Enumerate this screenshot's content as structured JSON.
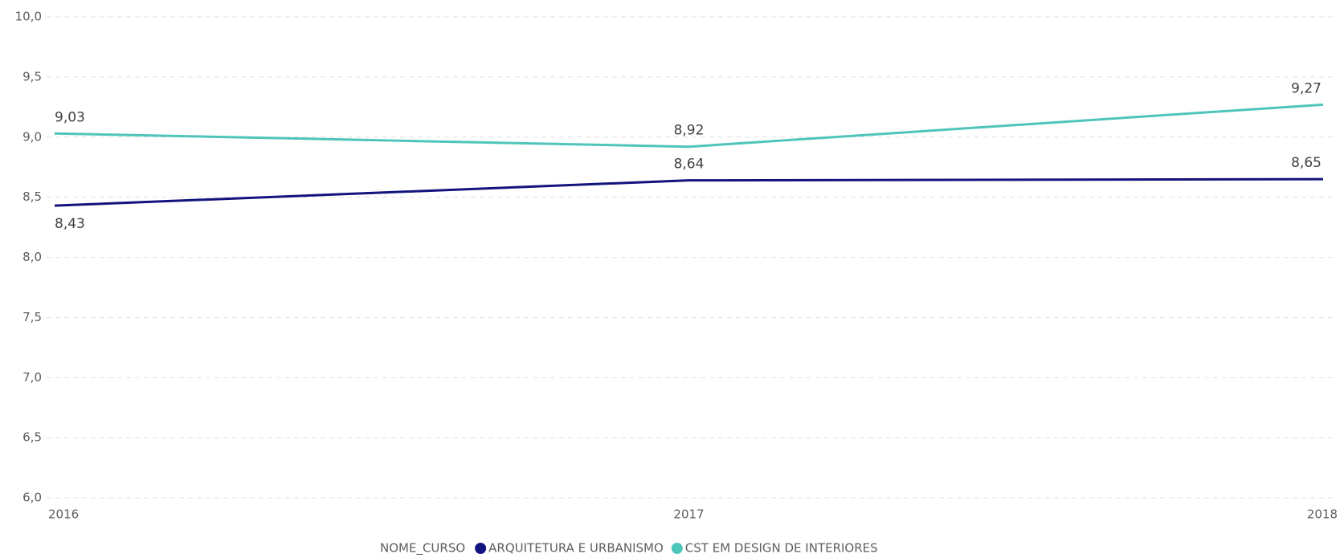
{
  "chart_data": {
    "type": "line",
    "categories": [
      "2016",
      "2017",
      "2018"
    ],
    "series": [
      {
        "name": "ARQUITETURA E URBANISMO",
        "color": "#13137f",
        "values": [
          8.43,
          8.64,
          8.65
        ],
        "value_labels": [
          "8,43",
          "8,64",
          "8,65"
        ]
      },
      {
        "name": "CST EM DESIGN DE INTERIORES",
        "color": "#4ec5bb",
        "values": [
          9.03,
          8.92,
          9.27
        ],
        "value_labels": [
          "9,03",
          "8,92",
          "9,27"
        ]
      }
    ],
    "legend_title": "NOME_CURSO",
    "legend": "bottom",
    "ylim": [
      6,
      10
    ],
    "yticks": [
      {
        "value": 6,
        "label": "6,0"
      },
      {
        "value": 6.5,
        "label": "6,5"
      },
      {
        "value": 7,
        "label": "7,0"
      },
      {
        "value": 7.5,
        "label": "7,5"
      },
      {
        "value": 8,
        "label": "8,0"
      },
      {
        "value": 8.5,
        "label": "8,5"
      },
      {
        "value": 9,
        "label": "9,0"
      },
      {
        "value": 9.5,
        "label": "9,5"
      },
      {
        "value": 10,
        "label": "10,0"
      }
    ],
    "grid": true
  }
}
